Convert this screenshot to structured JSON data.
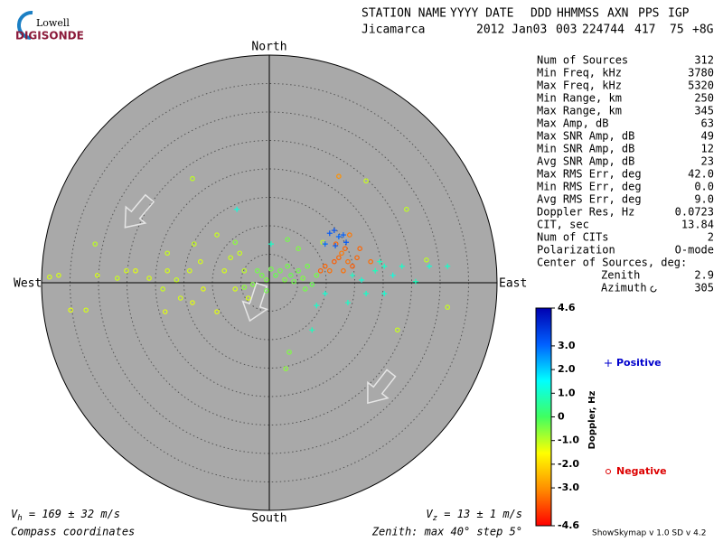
{
  "logo": {
    "top": "Lowell",
    "bottom": "DIGISONDE"
  },
  "header": {
    "columns": [
      "STATION NAME",
      "YYYY DATE",
      "DDD",
      "HHMMSS",
      "AXN",
      "PPS",
      "IGP"
    ],
    "values": [
      "Jicamarca",
      "2012 Jan03",
      "003",
      "224744",
      "417",
      "75",
      "+8G"
    ]
  },
  "stats": {
    "rows": [
      {
        "label": "Num of Sources",
        "value": "312"
      },
      {
        "label": "Min Freq, kHz",
        "value": "3780"
      },
      {
        "label": "Max Freq, kHz",
        "value": "5320"
      },
      {
        "label": "Min Range, km",
        "value": "250"
      },
      {
        "label": "Max Range, km",
        "value": "345"
      },
      {
        "label": "Max Amp, dB",
        "value": "63"
      },
      {
        "label": "Max SNR Amp, dB",
        "value": "49"
      },
      {
        "label": "Min SNR Amp, dB",
        "value": "12"
      },
      {
        "label": "Avg SNR Amp, dB",
        "value": "23"
      },
      {
        "label": "Max RMS Err, deg",
        "value": "42.0"
      },
      {
        "label": "Min RMS Err, deg",
        "value": "0.0"
      },
      {
        "label": "Avg RMS Err, deg",
        "value": "9.0"
      },
      {
        "label": "Doppler Res, Hz",
        "value": "0.0723"
      },
      {
        "label": "CIT, sec",
        "value": "13.84"
      },
      {
        "label": "Num of CITs",
        "value": "2"
      },
      {
        "label": "Polarization",
        "value": "O-mode"
      }
    ],
    "center": {
      "label": "Center of Sources, deg:",
      "rows": [
        {
          "label": "Zenith",
          "value": "2.9"
        },
        {
          "label": "Azimuth",
          "value": "305"
        }
      ]
    }
  },
  "chart_data": {
    "type": "skymap",
    "directions": {
      "north": "North",
      "south": "South",
      "east": "East",
      "west": "West"
    },
    "xlim": [
      -40,
      40
    ],
    "ylim": [
      -40,
      40
    ],
    "rticks": [
      5,
      10,
      15,
      20,
      25,
      30,
      35
    ],
    "grid": true,
    "background": "#a9a9a9",
    "points": {
      "x": [
        -38.6,
        -37.0,
        -34.9,
        -32.2,
        -30.6,
        -30.2,
        -26.7,
        -25.1,
        -23.5,
        -21.1,
        -18.7,
        -18.3,
        -17.9,
        -16.3,
        -15.6,
        -14.0,
        -13.5,
        -13.2,
        -12.1,
        -11.6,
        -9.2,
        -9.2,
        -7.9,
        -6.8,
        -6.0,
        -5.2,
        -4.4,
        -3.7,
        -13.5,
        -17.9,
        24.1,
        31.3,
        27.6,
        22.5,
        17.0,
        9.4,
        -2.1,
        -1.3,
        -0.5,
        0.3,
        1.1,
        1.9,
        2.7,
        3.2,
        3.8,
        4.3,
        5.1,
        5.9,
        6.7,
        7.5,
        8.3,
        5.1,
        3.2,
        2.9,
        3.5,
        -6.0,
        -0.5,
        -2.9,
        -4.4,
        6.3,
        9.8,
        10.6,
        11.4,
        12.2,
        12.7,
        13.3,
        13.8,
        14.6,
        15.4,
        13.0,
        11.7,
        14.1,
        15.9,
        17.8,
        9.0,
        12.2,
        10.6,
        11.4,
        12.2,
        13.0,
        13.5,
        9.8,
        11.6,
        14.6,
        16.2,
        18.6,
        20.2,
        21.7,
        23.3,
        25.7,
        28.1,
        31.3,
        17.0,
        20.2,
        19.4,
        13.8,
        9.8,
        8.3,
        -5.7,
        7.5,
        0.3
      ],
      "y": [
        1.0,
        1.3,
        -4.8,
        -4.8,
        6.8,
        1.3,
        0.8,
        2.1,
        2.1,
        0.8,
        -1.1,
        -5.1,
        2.1,
        0.5,
        -2.7,
        2.1,
        18.3,
        6.8,
        3.7,
        -1.1,
        8.4,
        -5.1,
        2.1,
        4.4,
        -1.1,
        5.2,
        2.1,
        -2.7,
        -3.5,
        5.2,
        12.9,
        -4.3,
        4.0,
        -8.3,
        17.9,
        7.1,
        2.1,
        1.3,
        0.5,
        2.4,
        1.3,
        2.1,
        0.5,
        2.9,
        1.3,
        0.2,
        2.1,
        0.8,
        2.9,
        -0.3,
        1.3,
        6.0,
        7.6,
        -15.1,
        -12.2,
        7.1,
        -1.4,
        -0.3,
        -0.8,
        -1.1,
        2.9,
        2.1,
        3.7,
        4.4,
        5.2,
        6.0,
        3.7,
        2.9,
        4.4,
        2.1,
        6.8,
        8.4,
        6.0,
        3.7,
        2.1,
        18.7,
        8.7,
        9.2,
        8.1,
        8.4,
        7.1,
        6.8,
        6.5,
        1.3,
        0.5,
        2.1,
        2.9,
        1.3,
        2.9,
        0.2,
        2.9,
        2.9,
        -1.9,
        -1.9,
        3.7,
        -3.5,
        -1.9,
        -4.0,
        12.9,
        -8.3,
        6.8
      ],
      "doppler": [
        -1.2,
        -1.2,
        -1.3,
        -1.2,
        -1.0,
        -1.2,
        -1.1,
        -1.2,
        -1.3,
        -1.2,
        -1.1,
        -1.3,
        -1.2,
        -1.1,
        -1.2,
        -1.2,
        -1.0,
        -1.1,
        -1.2,
        -1.3,
        -1.1,
        -1.3,
        -1.2,
        -1.1,
        -1.2,
        -1.1,
        -1.0,
        -1.2,
        -1.3,
        -1.1,
        -1.0,
        -1.1,
        -1.0,
        -1.1,
        -1.1,
        -1.0,
        -0.4,
        -0.4,
        -0.5,
        -0.4,
        -0.3,
        -0.4,
        -0.5,
        -0.4,
        -0.3,
        -0.4,
        -0.4,
        -0.5,
        -0.4,
        -0.3,
        -0.4,
        -0.5,
        -0.4,
        -0.6,
        -0.5,
        -0.6,
        -0.4,
        -0.5,
        -0.6,
        -0.4,
        -3.5,
        -3.4,
        -3.6,
        -3.5,
        -3.3,
        -3.5,
        -3.4,
        -3.6,
        -3.5,
        -3.4,
        -3.5,
        -3.3,
        -3.5,
        -3.4,
        -3.5,
        -3.0,
        3.2,
        3.3,
        3.0,
        3.1,
        3.2,
        3.0,
        3.1,
        1.0,
        1.1,
        0.9,
        1.0,
        1.2,
        1.0,
        0.9,
        1.1,
        1.0,
        1.0,
        1.1,
        0.9,
        1.0,
        1.1,
        1.0,
        1.2,
        0.9,
        1.0
      ]
    },
    "colorbar": {
      "label": "Doppler, Hz",
      "lim": [
        -4.6,
        4.6
      ],
      "colors": [
        "#ff0000",
        "#ff8c00",
        "#ffff00",
        "#40ff60",
        "#00ffff",
        "#0060ff",
        "#0000b0"
      ],
      "ticks": [
        4.6,
        {
          "value": 3,
          "label": "3.0"
        },
        {
          "value": 2,
          "label": "2.0"
        },
        {
          "value": 1,
          "label": "1.0"
        },
        0,
        {
          "value": -1,
          "label": "-1.0"
        },
        {
          "value": -2,
          "label": "-2.0"
        },
        {
          "value": -3,
          "label": "-3.0"
        },
        -4.6
      ]
    },
    "legend": [
      {
        "name": "Positive",
        "color": "#0000cc",
        "marker": "plus"
      },
      {
        "name": "Negative",
        "color": "#dd0000",
        "marker": "circle"
      }
    ],
    "vh": {
      "symbol": "V",
      "sub": "h",
      "text": " = 169 ± 32 m/s"
    },
    "vz": {
      "symbol": "V",
      "sub": "z",
      "text": " = 13 ± 1 m/s"
    },
    "coords": "Compass coordinates",
    "zenith": "Zenith: max 40°  step 5°",
    "footer": "ShowSkymap v 1.0  SD v 4.2"
  }
}
